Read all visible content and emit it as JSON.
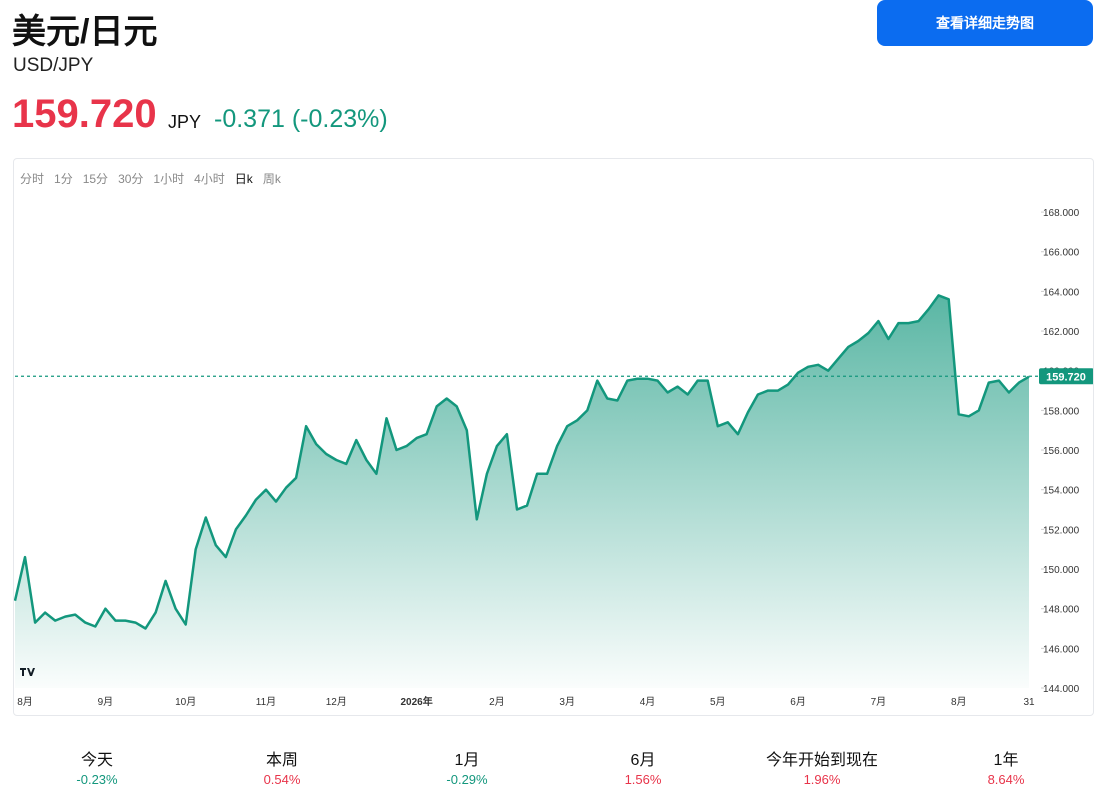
{
  "header": {
    "title": "美元/日元",
    "symbol": "USD/JPY",
    "price": "159.720",
    "currency": "JPY",
    "change": "-0.371 (-0.23%)",
    "button": "查看详细走势图"
  },
  "timeframes": {
    "items": [
      "分时",
      "1分",
      "15分",
      "30分",
      "1小时",
      "4小时",
      "日k",
      "周k"
    ],
    "active": 6
  },
  "chart_data": {
    "type": "line",
    "categories": [
      null,
      "8月",
      null,
      null,
      null,
      null,
      null,
      null,
      null,
      "9月",
      null,
      null,
      null,
      null,
      null,
      null,
      null,
      "10月",
      null,
      null,
      null,
      null,
      null,
      null,
      null,
      "11月",
      null,
      null,
      null,
      null,
      null,
      null,
      "12月",
      null,
      null,
      null,
      null,
      null,
      null,
      null,
      "2026年",
      null,
      null,
      null,
      null,
      null,
      null,
      null,
      "2月",
      null,
      null,
      null,
      null,
      null,
      null,
      "3月",
      null,
      null,
      null,
      null,
      null,
      null,
      null,
      "4月",
      null,
      null,
      null,
      null,
      null,
      null,
      "5月",
      null,
      null,
      null,
      null,
      null,
      null,
      null,
      "6月",
      null,
      null,
      null,
      null,
      null,
      null,
      null,
      "7月",
      null,
      null,
      null,
      null,
      null,
      null,
      null,
      "8月",
      null,
      null,
      null,
      null,
      null,
      null,
      "31"
    ],
    "series": [
      {
        "name": "USD/JPY",
        "color": "#13977d",
        "values": [
          148.4,
          150.6,
          147.3,
          147.8,
          147.4,
          147.6,
          147.7,
          147.3,
          147.1,
          148.0,
          147.4,
          147.4,
          147.3,
          147.0,
          147.8,
          149.4,
          148.0,
          147.2,
          151.0,
          152.6,
          151.2,
          150.6,
          152.0,
          152.7,
          153.5,
          154.0,
          153.4,
          154.1,
          154.6,
          157.2,
          156.3,
          155.8,
          155.5,
          155.3,
          156.5,
          155.5,
          154.8,
          157.6,
          156.0,
          156.2,
          156.6,
          156.8,
          158.2,
          158.6,
          158.2,
          157.0,
          152.5,
          154.8,
          156.2,
          156.8,
          153.0,
          153.2,
          154.8,
          154.8,
          156.2,
          157.2,
          157.5,
          158.0,
          159.5,
          158.6,
          158.5,
          159.5,
          159.6,
          159.6,
          159.5,
          158.9,
          159.2,
          158.8,
          159.5,
          159.5,
          157.2,
          157.4,
          156.8,
          157.9,
          158.8,
          159.0,
          159.0,
          159.3,
          159.9,
          160.2,
          160.3,
          160.0,
          160.6,
          161.2,
          161.5,
          161.9,
          162.5,
          161.6,
          162.4,
          162.4,
          162.5,
          163.1,
          163.8,
          163.6,
          157.8,
          157.7,
          158.0,
          159.4,
          159.5,
          158.9,
          159.4,
          159.7
        ]
      }
    ],
    "current": {
      "value": 159.72,
      "label": "159.720"
    },
    "ylim": [
      144,
      169
    ],
    "yticks": [
      {
        "value": 144,
        "label": "144.000"
      },
      {
        "value": 146,
        "label": "146.000"
      },
      {
        "value": 148,
        "label": "148.000"
      },
      {
        "value": 150,
        "label": "150.000"
      },
      {
        "value": 152,
        "label": "152.000"
      },
      {
        "value": 154,
        "label": "154.000"
      },
      {
        "value": 156,
        "label": "156.000"
      },
      {
        "value": 158,
        "label": "158.000"
      },
      {
        "value": 160,
        "label": "160.000"
      },
      {
        "value": 162,
        "label": "162.000"
      },
      {
        "value": 164,
        "label": "164.000"
      },
      {
        "value": 166,
        "label": "166.000"
      },
      {
        "value": 168,
        "label": "168.000"
      }
    ]
  },
  "stats": [
    {
      "label": "今天",
      "value": "-0.23%",
      "color": "#13977d"
    },
    {
      "label": "本周",
      "value": "0.54%",
      "color": "#e8344a"
    },
    {
      "label": "1月",
      "value": "-0.29%",
      "color": "#13977d"
    },
    {
      "label": "6月",
      "value": "1.56%",
      "color": "#e8344a"
    },
    {
      "label": "今年开始到现在",
      "value": "1.96%",
      "color": "#e8344a"
    },
    {
      "label": "1年",
      "value": "8.64%",
      "color": "#e8344a"
    }
  ]
}
